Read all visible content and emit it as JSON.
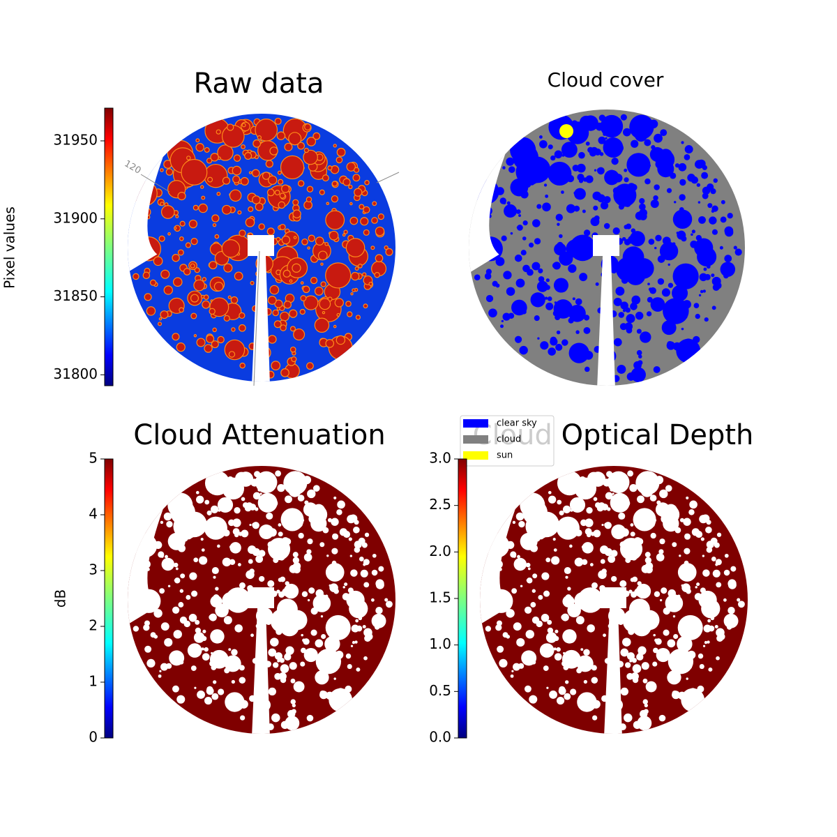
{
  "chart_data": [
    {
      "type": "image",
      "title": "Raw data",
      "colormap": "jet",
      "colorbar_label": "Pixel values",
      "ylim": [
        31793,
        31971
      ],
      "yticks": [
        31800,
        31850,
        31900,
        31950
      ],
      "annotation": "120"
    },
    {
      "type": "image",
      "title": "Cloud cover",
      "colormap": "categorical",
      "legend": [
        {
          "name": "clear sky",
          "color": "#0000ff"
        },
        {
          "name": "cloud",
          "color": "#808080"
        },
        {
          "name": "sun",
          "color": "#ffff00"
        }
      ]
    },
    {
      "type": "image",
      "title": "Cloud Attenuation",
      "colormap": "jet",
      "colorbar_label": "dB",
      "ylim": [
        0,
        5
      ],
      "yticks": [
        0,
        1,
        2,
        3,
        4,
        5
      ]
    },
    {
      "type": "image",
      "title": "Cloud Optical Depth",
      "colormap": "jet",
      "ylim": [
        0,
        3
      ],
      "yticks": [
        {
          "value": 0,
          "label": "0.0"
        },
        0.5,
        {
          "value": 1,
          "label": "1.0"
        },
        1.5,
        {
          "value": 2,
          "label": "2.0"
        },
        2.5,
        {
          "value": 3,
          "label": "3.0"
        }
      ]
    }
  ]
}
